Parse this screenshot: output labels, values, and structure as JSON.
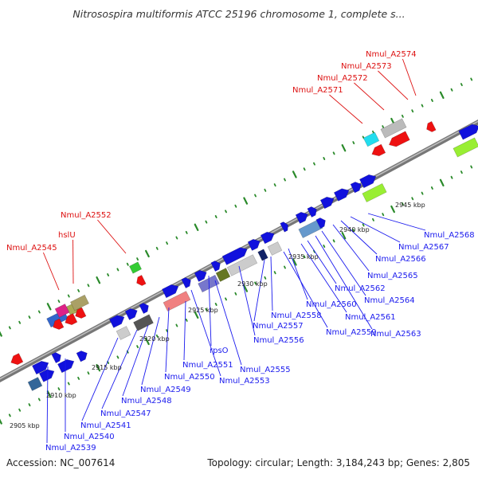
{
  "title": "Nitrosospira multiformis ATCC 25196 chromosome 1, complete s...",
  "footer": {
    "accession": "Accession: NC_007614",
    "summary": "Topology: circular; Length: 3,184,243 bp; Genes: 2,805"
  },
  "colors": {
    "forward": "#1111dd",
    "reverse": "#ee1111",
    "label_blue": "#1a1aee",
    "label_red": "#dd1111",
    "backbone": "#777777",
    "tick": "#2a8a2a"
  },
  "scale_labels": [
    "2905 kbp",
    "2910 kbp",
    "2915 kbp",
    "2920 kbp",
    "2925 kbp",
    "2930 kbp",
    "2935 kbp",
    "2940 kbp",
    "2945 kbp"
  ],
  "gene_labels_top": [
    "Nmul_A2574",
    "Nmul_A2573",
    "Nmul_A2572",
    "Nmul_A2571",
    "Nmul_A2552",
    "hslU",
    "Nmul_A2545"
  ],
  "gene_labels_bottom": [
    "Nmul_A2568",
    "Nmul_A2567",
    "Nmul_A2566",
    "Nmul_A2565",
    "Nmul_A2564",
    "Nmul_A2563",
    "Nmul_A2562",
    "Nmul_A2561",
    "Nmul_A2560",
    "Nmul_A2559",
    "Nmul_A2558",
    "Nmul_A2557",
    "Nmul_A2556",
    "rpsO",
    "Nmul_A2555",
    "Nmul_A2553",
    "Nmul_A2551",
    "Nmul_A2550",
    "Nmul_A2549",
    "Nmul_A2548",
    "Nmul_A2547",
    "Nmul_A2541",
    "Nmul_A2540",
    "Nmul_A2539"
  ]
}
